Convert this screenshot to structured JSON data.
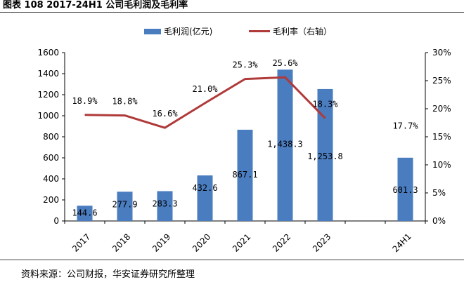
{
  "title": "图表 108 2017-24H1 公司毛利润及毛利率",
  "source": "资料来源：公司财报，华安证券研究所整理",
  "colors": {
    "bar": "#4a7cc0",
    "line": "#b03a3a"
  },
  "chart_data": {
    "type": "bar",
    "categories": [
      "2017",
      "2018",
      "2019",
      "2020",
      "2021",
      "2022",
      "2023",
      "",
      "24H1"
    ],
    "series": [
      {
        "name": "毛利润(亿元)",
        "type": "bar",
        "axis": "left",
        "values": [
          144.6,
          277.9,
          283.3,
          432.6,
          867.1,
          1438.3,
          1253.8,
          null,
          601.3
        ],
        "labels": [
          "144.6",
          "277.9",
          "283.3",
          "432.6",
          "867.1",
          "1,438.3",
          "1,253.8",
          "",
          "601.3"
        ]
      },
      {
        "name": "毛利率（右轴）",
        "type": "line",
        "axis": "right",
        "values": [
          18.9,
          18.8,
          16.6,
          21.0,
          25.3,
          25.6,
          18.3,
          null,
          17.7
        ],
        "labels": [
          "18.9%",
          "18.8%",
          "16.6%",
          "21.0%",
          "25.3%",
          "25.6%",
          "18.3%",
          "",
          "17.7%"
        ]
      }
    ],
    "y_left": {
      "ylim": [
        0,
        1600
      ],
      "ticks": [
        "0",
        "200",
        "400",
        "600",
        "800",
        "1000",
        "1200",
        "1400",
        "1600"
      ]
    },
    "y_right": {
      "ylim": [
        0,
        30
      ],
      "ticks": [
        "0%",
        "5%",
        "10%",
        "15%",
        "20%",
        "25%",
        "30%"
      ]
    },
    "legend": "top-center"
  }
}
